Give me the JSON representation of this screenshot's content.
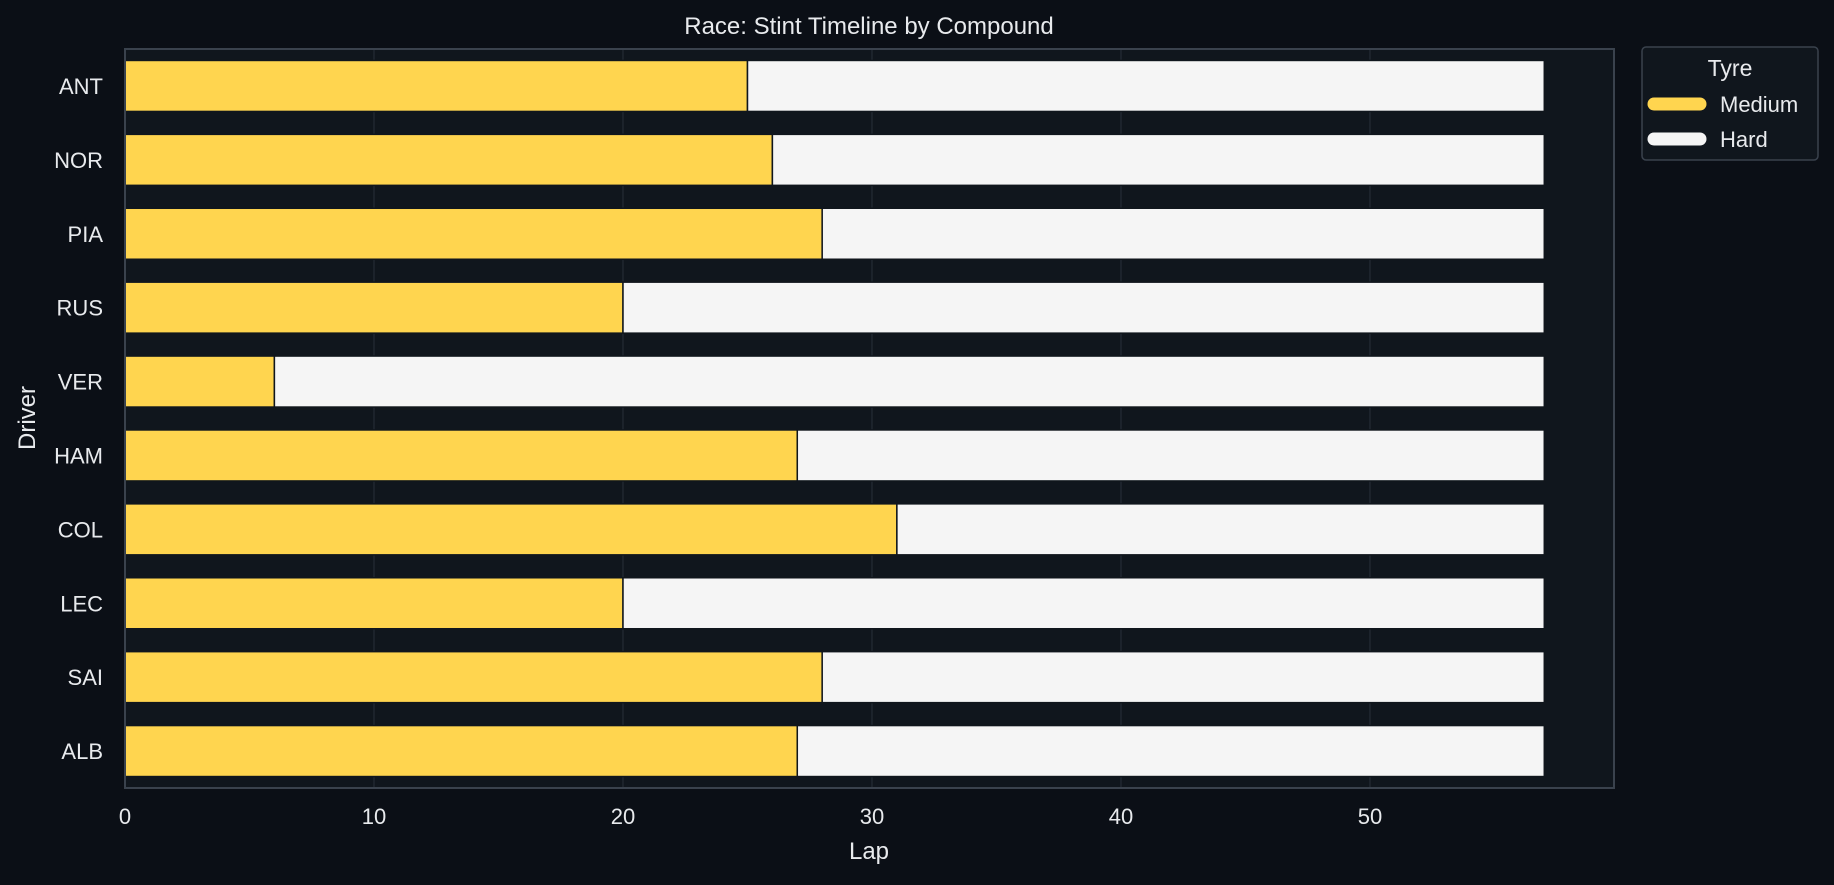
{
  "chart_data": {
    "type": "bar",
    "orientation": "horizontal",
    "stacked": true,
    "title": "Race: Stint Timeline by Compound",
    "xlabel": "Lap",
    "ylabel": "Driver",
    "xlim": [
      0,
      59.8
    ],
    "xticks": [
      0,
      10,
      20,
      30,
      40,
      50
    ],
    "grid": true,
    "categories": [
      "ANT",
      "NOR",
      "PIA",
      "RUS",
      "VER",
      "HAM",
      "COL",
      "LEC",
      "SAI",
      "ALB"
    ],
    "series": [
      {
        "name": "Medium",
        "color": "#ffd54f",
        "values": [
          25,
          26,
          28,
          20,
          6,
          27,
          31,
          20,
          28,
          27
        ]
      },
      {
        "name": "Hard",
        "color": "#f5f5f5",
        "values": [
          32,
          31,
          29,
          37,
          51,
          30,
          26,
          37,
          29,
          30
        ]
      }
    ],
    "legend": {
      "title": "Tyre",
      "position": "outside-top-right",
      "entries": [
        "Medium",
        "Hard"
      ]
    },
    "colors": {
      "page_background": "#0b0f16",
      "plot_background": "#10161d",
      "frame": "#3a424d",
      "grid": "#252c35",
      "text": "#e8eaed",
      "bar_edge": "#10161d"
    }
  }
}
